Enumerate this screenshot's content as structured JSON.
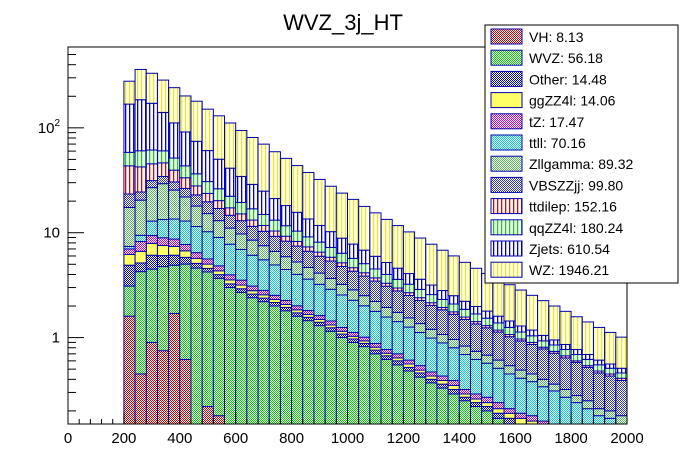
{
  "chart_data": {
    "type": "bar",
    "stacked": true,
    "histogram": true,
    "title": "WVZ_3j_HT",
    "xlabel": "",
    "ylabel": "",
    "xlim": [
      0,
      2000
    ],
    "ylim": [
      0.15,
      590
    ],
    "yscale": "log",
    "grid": false,
    "legend_position": "top-right",
    "x_ticks": [
      0,
      200,
      400,
      600,
      800,
      1000,
      1200,
      1400,
      1600,
      1800,
      2000
    ],
    "x_tick_labels": [
      "0",
      "200",
      "400",
      "600",
      "800",
      "1000",
      "1200",
      "1400",
      "1600",
      "1800",
      "2000"
    ],
    "y_ticks": [
      1,
      10,
      100
    ],
    "y_tick_labels": [
      "1",
      "10",
      "10²"
    ],
    "bin_edges_start": 200,
    "bin_width": 40,
    "n_bins": 45,
    "series": [
      {
        "name": "VH",
        "legend": "VH: 8.13",
        "color": "#e06060",
        "pattern": "crosshatch",
        "pattern_color": "#cc0000",
        "values": [
          1.6,
          0.45,
          0.9,
          0.75,
          1.7,
          0.62,
          0,
          0.22,
          0.18,
          0,
          0,
          0,
          0,
          0,
          0,
          0,
          0,
          0,
          0,
          0,
          0,
          0,
          0,
          0,
          0,
          0,
          0,
          0,
          0,
          0,
          0,
          0,
          0,
          0,
          0,
          0,
          0,
          0,
          0,
          0,
          0,
          0,
          0,
          0,
          0
        ]
      },
      {
        "name": "WVZ",
        "legend": "WVZ: 56.18",
        "color": "#55dd55",
        "pattern": "crosshatch",
        "pattern_color": "#00cc00",
        "values": [
          1.5,
          3.8,
          3.6,
          4.0,
          3.2,
          4.4,
          4.6,
          4.0,
          3.5,
          3.0,
          2.7,
          2.4,
          2.2,
          2.0,
          1.8,
          1.6,
          1.45,
          1.3,
          1.15,
          1.0,
          0.9,
          0.82,
          0.7,
          0.62,
          0.55,
          0.48,
          0.42,
          0.37,
          0.33,
          0.29,
          0.25,
          0.22,
          0.2,
          0.17,
          0.15,
          0.13,
          0.12,
          0.1,
          0.09,
          0.08,
          0.07,
          0.06,
          0.05,
          0.05,
          0.04
        ]
      },
      {
        "name": "Other",
        "legend": "Other: 14.48",
        "color": "#3333cc",
        "pattern": "crosshatch",
        "pattern_color": "#0000cc",
        "values": [
          1.8,
          0.9,
          1.6,
          1.3,
          1.2,
          0.8,
          0.5,
          0.35,
          0.3,
          0.25,
          0.22,
          0.2,
          0.18,
          0.16,
          0.14,
          0.12,
          0.11,
          0.1,
          0.09,
          0.08,
          0.07,
          0.06,
          0.06,
          0.05,
          0.05,
          0.04,
          0.04,
          0.03,
          0.03,
          0.03,
          0.02,
          0.02,
          0.02,
          0.02,
          0.02,
          0.02,
          0.02,
          0.02,
          0.02,
          0.02,
          0.01,
          0.01,
          0.01,
          0.01,
          0.01
        ]
      },
      {
        "name": "ggZZ4l",
        "legend": "ggZZ4l: 14.06",
        "color": "#ffff66",
        "pattern": "solid",
        "pattern_color": "#ffff00",
        "values": [
          1.3,
          1.5,
          1.8,
          1.5,
          1.3,
          0.9,
          0.6,
          0.45,
          0.35,
          0.3,
          0.25,
          0.2,
          0.18,
          0.15,
          0.13,
          0.12,
          0.1,
          0.09,
          0.08,
          0.07,
          0.06,
          0.05,
          0.05,
          0.04,
          0.04,
          0.04,
          0.03,
          0.03,
          0.03,
          0.03,
          0.02,
          0.02,
          0.02,
          0.02,
          0.02,
          0.02,
          0.02,
          0.02,
          0.02,
          0.01,
          0.01,
          0.01,
          0.01,
          0.01,
          0.01
        ]
      },
      {
        "name": "tZ",
        "legend": "tZ: 17.47",
        "color": "#dd55dd",
        "pattern": "crosshatch",
        "pattern_color": "#cc00cc",
        "values": [
          0.8,
          1.6,
          1.5,
          1.4,
          1.3,
          1.0,
          0.75,
          0.6,
          0.5,
          0.42,
          0.36,
          0.3,
          0.26,
          0.22,
          0.19,
          0.17,
          0.15,
          0.13,
          0.12,
          0.1,
          0.09,
          0.08,
          0.07,
          0.06,
          0.06,
          0.05,
          0.05,
          0.04,
          0.04,
          0.04,
          0.03,
          0.03,
          0.03,
          0.03,
          0.02,
          0.02,
          0.02,
          0.02,
          0.02,
          0.02,
          0.02,
          0.01,
          0.01,
          0.01,
          0.01
        ]
      },
      {
        "name": "ttll",
        "legend": "ttll: 70.16",
        "color": "#55eeee",
        "pattern": "crosshatch",
        "pattern_color": "#00cccc",
        "values": [
          0.4,
          1.2,
          3.5,
          4.4,
          4.8,
          5.2,
          5.0,
          4.6,
          4.2,
          3.8,
          3.4,
          3.0,
          2.7,
          2.4,
          2.2,
          2.0,
          1.8,
          1.6,
          1.45,
          1.3,
          1.15,
          1.0,
          0.9,
          0.8,
          0.72,
          0.65,
          0.58,
          0.52,
          0.46,
          0.41,
          0.37,
          0.33,
          0.3,
          0.27,
          0.24,
          0.22,
          0.2,
          0.18,
          0.16,
          0.14,
          0.13,
          0.12,
          0.1,
          0.09,
          0.08
        ]
      },
      {
        "name": "Zllgamma",
        "legend": "Zllgamma: 89.32",
        "color": "#88dd88",
        "pattern": "crosshatch",
        "pattern_color": "#55bb55",
        "values": [
          10,
          11,
          14,
          16,
          12,
          9,
          6.5,
          5,
          4.0,
          3.3,
          2.8,
          2.4,
          2.0,
          1.7,
          1.45,
          1.25,
          1.05,
          0.9,
          0.78,
          0.67,
          0.58,
          0.5,
          0.43,
          0.37,
          0.32,
          0.28,
          0.24,
          0.21,
          0.18,
          0.16,
          0.14,
          0.12,
          0.11,
          0.1,
          0.09,
          0.08,
          0.07,
          0.06,
          0.05,
          0.05,
          0.04,
          0.04,
          0.03,
          0.03,
          0.03
        ]
      },
      {
        "name": "VBSZZjj",
        "legend": "VBSZZjj: 99.80",
        "color": "#7777cc",
        "pattern": "crosshatch",
        "pattern_color": "#3333aa",
        "values": [
          6,
          4,
          4.5,
          5,
          5,
          4.5,
          5,
          4.5,
          4,
          3.6,
          3.3,
          3.0,
          2.8,
          2.6,
          2.4,
          2.2,
          2.0,
          1.85,
          1.7,
          1.55,
          1.45,
          1.35,
          1.25,
          1.15,
          1.05,
          0.98,
          0.9,
          0.83,
          0.77,
          0.71,
          0.66,
          0.61,
          0.56,
          0.52,
          0.48,
          0.44,
          0.41,
          0.38,
          0.35,
          0.32,
          0.3,
          0.27,
          0.25,
          0.23,
          0.21
        ]
      },
      {
        "name": "ttdilep",
        "legend": "ttdilep: 152.16",
        "color": "#ffffff",
        "pattern": "vlines",
        "pattern_color": "#dd0000",
        "values": [
          20,
          18,
          14,
          12,
          9,
          7,
          5,
          4,
          3.2,
          2.6,
          2.1,
          1.7,
          1.4,
          1.15,
          0.95,
          0.8,
          0.67,
          0.56,
          0.47,
          0.4,
          0.34,
          0.29,
          0.25,
          0.21,
          0.18,
          0.16,
          0.14,
          0.12,
          0.1,
          0.09,
          0.08,
          0.07,
          0.06,
          0.05,
          0.05,
          0.04,
          0.04,
          0.03,
          0.03,
          0.03,
          0.02,
          0.02,
          0.02,
          0.02,
          0.02
        ]
      },
      {
        "name": "qqZZ4l",
        "legend": "qqZZ4l: 180.24",
        "color": "#ffffff",
        "pattern": "vlines",
        "pattern_color": "#00dd00",
        "values": [
          15,
          18,
          16,
          14,
          12,
          10,
          8.5,
          7,
          6,
          5,
          4.3,
          3.7,
          3.2,
          2.8,
          2.4,
          2.1,
          1.8,
          1.6,
          1.4,
          1.2,
          1.05,
          0.92,
          0.8,
          0.7,
          0.62,
          0.55,
          0.48,
          0.42,
          0.37,
          0.33,
          0.29,
          0.26,
          0.23,
          0.2,
          0.18,
          0.16,
          0.14,
          0.12,
          0.11,
          0.1,
          0.09,
          0.08,
          0.07,
          0.06,
          0.05
        ]
      },
      {
        "name": "Zjets",
        "legend": "Zjets: 610.54",
        "color": "#ffffff",
        "pattern": "vlines",
        "pattern_color": "#0000dd",
        "values": [
          110,
          125,
          110,
          80,
          60,
          48,
          38,
          30,
          24,
          19,
          15,
          12,
          10,
          8,
          6.5,
          5.3,
          4.4,
          3.6,
          3.0,
          2.5,
          2.1,
          1.75,
          1.45,
          1.2,
          1.0,
          0.85,
          0.72,
          0.6,
          0.5,
          0.42,
          0.36,
          0.3,
          0.26,
          0.22,
          0.19,
          0.16,
          0.14,
          0.12,
          0.1,
          0.09,
          0.08,
          0.07,
          0.06,
          0.05,
          0.05
        ]
      },
      {
        "name": "WZ",
        "legend": "WZ: 1946.21",
        "color": "#ffffff",
        "pattern": "vlines",
        "pattern_color": "#eeee00",
        "values": [
          110,
          175,
          160,
          145,
          130,
          110,
          105,
          90,
          80,
          70,
          60,
          52,
          45,
          38,
          33,
          28,
          24,
          20.5,
          17.5,
          15,
          13,
          11,
          9.5,
          8.2,
          7.1,
          6.1,
          5.3,
          4.6,
          4.0,
          3.5,
          3.0,
          2.6,
          2.3,
          2.0,
          1.75,
          1.55,
          1.35,
          1.2,
          1.05,
          0.92,
          0.81,
          0.72,
          0.64,
          0.56,
          0.5
        ]
      }
    ]
  }
}
